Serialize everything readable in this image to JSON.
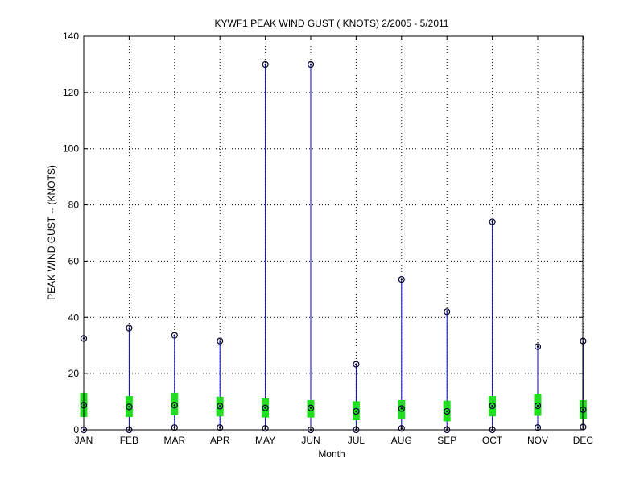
{
  "chart_data": {
    "type": "box",
    "title": "KYWF1  PEAK WIND GUST ( KNOTS) 2/2005 - 5/2011",
    "xlabel": "Month",
    "ylabel": "PEAK WIND GUST -- (KNOTS)",
    "ylim": [
      0,
      140
    ],
    "yticks": [
      0,
      20,
      40,
      60,
      80,
      100,
      120,
      140
    ],
    "grid": true,
    "categories": [
      "JAN",
      "FEB",
      "MAR",
      "APR",
      "MAY",
      "JUN",
      "JUL",
      "AUG",
      "SEP",
      "OCT",
      "NOV",
      "DEC"
    ],
    "max": [
      32.5,
      36.2,
      33.6,
      31.6,
      130,
      130,
      23.3,
      53.5,
      42,
      74,
      29.6,
      31.6
    ],
    "q3": [
      13.2,
      12.0,
      13.2,
      11.8,
      11.2,
      10.6,
      10.2,
      10.6,
      10.4,
      12.0,
      12.6,
      10.6
    ],
    "median": [
      8.8,
      8.2,
      8.8,
      8.5,
      7.8,
      7.8,
      6.6,
      7.6,
      6.6,
      8.6,
      8.6,
      7.2
    ],
    "q1": [
      4.6,
      4.6,
      5.2,
      4.8,
      4.4,
      4.4,
      3.4,
      3.8,
      3.0,
      4.8,
      5.0,
      4.0
    ],
    "min": [
      0,
      0,
      0.8,
      0.8,
      0.5,
      0,
      0,
      0.5,
      0,
      0,
      0.8,
      1.0
    ],
    "colors": {
      "whisker": "#0000cc",
      "box": "#22dd22",
      "marker": "#000033",
      "grid": "#000000"
    }
  }
}
